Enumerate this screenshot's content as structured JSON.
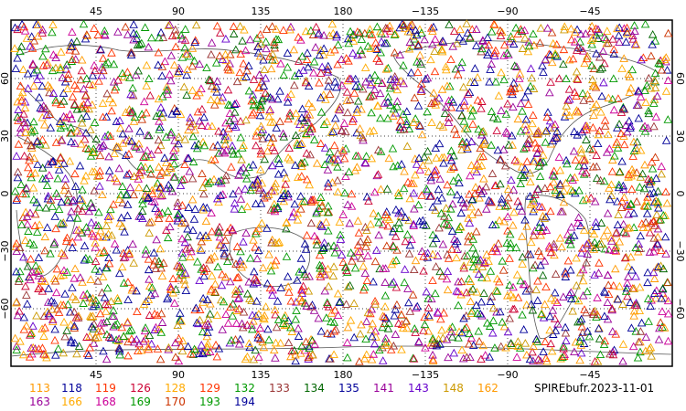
{
  "map": {
    "lon_ticks_top": [
      "45",
      "90",
      "135",
      "180",
      "−135",
      "−90",
      "−45"
    ],
    "lon_ticks_bottom": [
      "45",
      "90",
      "135",
      "180",
      "−135",
      "−90",
      "−45"
    ],
    "lat_ticks": [
      "60",
      "30",
      "0",
      "−30",
      "−60"
    ],
    "source_label": "SPIREbufr.2023-11-01"
  },
  "legend": [
    {
      "label": "113",
      "color": "#ff9900"
    },
    {
      "label": "118",
      "color": "#000099"
    },
    {
      "label": "119",
      "color": "#ff3300"
    },
    {
      "label": "126",
      "color": "#cc0033"
    },
    {
      "label": "128",
      "color": "#ffaa00"
    },
    {
      "label": "129",
      "color": "#ff3300"
    },
    {
      "label": "132",
      "color": "#009900"
    },
    {
      "label": "133",
      "color": "#993333"
    },
    {
      "label": "134",
      "color": "#006600"
    },
    {
      "label": "135",
      "color": "#000099"
    },
    {
      "label": "141",
      "color": "#990099"
    },
    {
      "label": "143",
      "color": "#6600cc"
    },
    {
      "label": "148",
      "color": "#cc9900"
    },
    {
      "label": "162",
      "color": "#ff9900"
    },
    {
      "label": "163",
      "color": "#990099"
    },
    {
      "label": "166",
      "color": "#ffaa00"
    },
    {
      "label": "168",
      "color": "#cc0099"
    },
    {
      "label": "169",
      "color": "#009900"
    },
    {
      "label": "170",
      "color": "#cc3300"
    },
    {
      "label": "193",
      "color": "#009900"
    },
    {
      "label": "194",
      "color": "#000099"
    }
  ]
}
